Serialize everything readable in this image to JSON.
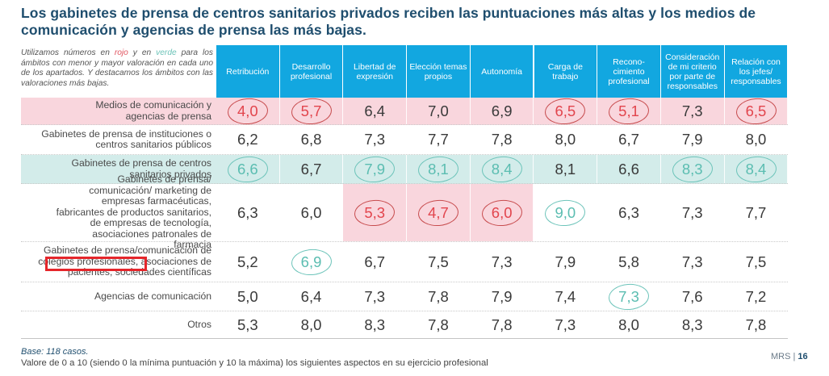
{
  "title": "Los gabinetes de prensa de centros sanitarios privados reciben las puntuaciones más altas y los medios de comunicación y agencias de prensa las más bajas.",
  "note": {
    "part1": "Utilizamos números en ",
    "red_word": "rojo",
    "part2": " y en ",
    "green_word": "verde",
    "part3": " para los ámbitos con menor y mayor valoración en cada uno de los apartados. Y destacamos los ámbitos con las valoraciones más bajas."
  },
  "colors": {
    "header": "#12a7e0",
    "title": "#1f4e6e",
    "low": "#e2454d",
    "high": "#5bbdb1",
    "low_row_bg": "#f9d6dd",
    "high_row_bg": "#d3ecea"
  },
  "columns": [
    "Retribución",
    "Desarrollo profesional",
    "Libertad de expresión",
    "Elección temas propios",
    "Autonomía",
    "Carga de trabajo",
    "Recono-cimiento profesional",
    "Consideración de mi criterio por parte de responsables",
    "Relación con los jefes/ responsables"
  ],
  "rows": [
    {
      "label": "Medios de comunicación y agencias de prensa",
      "values": [
        "4,0",
        "5,7",
        "6,4",
        "7,0",
        "6,9",
        "6,5",
        "5,1",
        "7,3",
        "6,5"
      ],
      "marks": [
        "low",
        "low",
        "",
        "",
        "",
        "low",
        "low",
        "",
        "low"
      ]
    },
    {
      "label": "Gabinetes de prensa de instituciones o centros sanitarios públicos",
      "values": [
        "6,2",
        "6,8",
        "7,3",
        "7,7",
        "7,8",
        "8,0",
        "6,7",
        "7,9",
        "8,0"
      ],
      "marks": [
        "",
        "",
        "",
        "",
        "",
        "",
        "",
        "",
        ""
      ]
    },
    {
      "label": "Gabinetes de prensa de centros sanitarios privados",
      "values": [
        "6,6",
        "6,7",
        "7,9",
        "8,1",
        "8,4",
        "8,1",
        "6,6",
        "8,3",
        "8,4"
      ],
      "marks": [
        "high",
        "",
        "high",
        "high",
        "high",
        "",
        "",
        "high",
        "high"
      ]
    },
    {
      "label": "Gabinetes de prensa/ comunicación/ marketing de empresas farmacéuticas, fabricantes de productos sanitarios, de empresas de tecnología, asociaciones patronales de farmacia",
      "values": [
        "6,3",
        "6,0",
        "5,3",
        "4,7",
        "6,0",
        "9,0",
        "6,3",
        "7,3",
        "7,7"
      ],
      "marks": [
        "",
        "",
        "low",
        "low",
        "low",
        "high",
        "",
        "",
        ""
      ]
    },
    {
      "label": "Gabinetes de prensa/comunicación de colegios profesionales, asociaciones de pacientes, sociedades científicas",
      "values": [
        "5,2",
        "6,9",
        "6,7",
        "7,5",
        "7,3",
        "7,9",
        "5,8",
        "7,3",
        "7,5"
      ],
      "marks": [
        "",
        "high",
        "",
        "",
        "",
        "",
        "",
        "",
        ""
      ]
    },
    {
      "label": "Agencias de comunicación",
      "values": [
        "5,0",
        "6,4",
        "7,3",
        "7,8",
        "7,9",
        "7,4",
        "7,3",
        "7,6",
        "7,2"
      ],
      "marks": [
        "",
        "",
        "",
        "",
        "",
        "",
        "high",
        "",
        ""
      ]
    },
    {
      "label": "Otros",
      "values": [
        "5,3",
        "8,0",
        "8,3",
        "7,8",
        "7,8",
        "7,3",
        "8,0",
        "8,3",
        "7,8"
      ],
      "marks": [
        "",
        "",
        "",
        "",
        "",
        "",
        "",
        "",
        ""
      ]
    }
  ],
  "base": "Base: 118 casos.",
  "footnote": "Valore de 0 a 10 (siendo 0 la mínima puntuación y 10 la máxima) los siguientes aspectos en su ejercicio profesional",
  "page": {
    "brand": "MRS | ",
    "number": "16"
  }
}
